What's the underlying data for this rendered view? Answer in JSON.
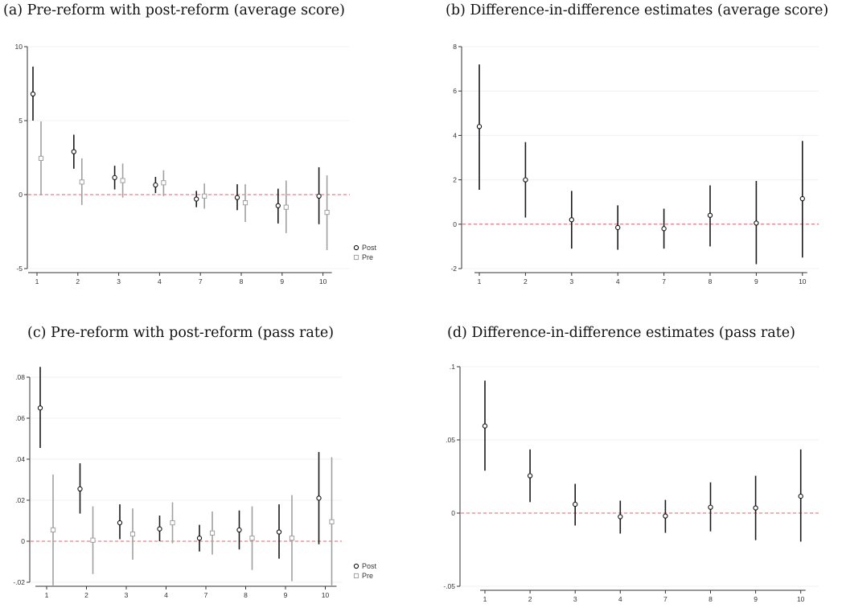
{
  "style": {
    "post_color": "#1a1a1a",
    "pre_color": "#a0a0a0",
    "zero_line_color": "#e06070",
    "grid_color": "#eef0f6"
  },
  "chart_data": [
    {
      "type": "scatter",
      "title": "(a) Pre-reform with post-reform (average score)",
      "categories": [
        "1",
        "2",
        "3",
        "4",
        "7",
        "8",
        "9",
        "10"
      ],
      "ylim": [
        -5,
        10
      ],
      "yticks": [
        "-5",
        "0",
        "5",
        "10"
      ],
      "ytick_values": [
        -5,
        0,
        5,
        10
      ],
      "reference_line": 0,
      "legend": {
        "placement": "bottom-right",
        "entries": [
          "Post",
          "Pre"
        ]
      },
      "series": [
        {
          "name": "Post",
          "marker": "circle",
          "values": [
            6.8,
            2.9,
            1.15,
            0.65,
            -0.3,
            -0.2,
            -0.75,
            -0.1
          ],
          "ci_low": [
            5.0,
            1.75,
            0.35,
            0.1,
            -0.85,
            -1.05,
            -1.95,
            -2.0
          ],
          "ci_high": [
            8.65,
            4.05,
            1.95,
            1.2,
            0.25,
            0.7,
            0.4,
            1.85
          ]
        },
        {
          "name": "Pre",
          "marker": "square",
          "values": [
            2.45,
            0.85,
            0.95,
            0.8,
            -0.1,
            -0.55,
            -0.85,
            -1.2
          ],
          "ci_low": [
            -0.05,
            -0.7,
            -0.2,
            -0.1,
            -0.95,
            -1.85,
            -2.6,
            -3.75
          ],
          "ci_high": [
            4.95,
            2.45,
            2.1,
            1.65,
            0.75,
            0.7,
            0.95,
            1.3
          ]
        }
      ]
    },
    {
      "type": "scatter",
      "title": "(b) Difference-in-difference estimates (average score)",
      "categories": [
        "1",
        "2",
        "3",
        "4",
        "7",
        "8",
        "9",
        "10"
      ],
      "ylim": [
        -2,
        8
      ],
      "yticks": [
        "-2",
        "0",
        "2",
        "4",
        "6",
        "8"
      ],
      "ytick_values": [
        -2,
        0,
        2,
        4,
        6,
        8
      ],
      "reference_line": 0,
      "series": [
        {
          "marker": "circle",
          "values": [
            4.4,
            2.0,
            0.2,
            -0.15,
            -0.2,
            0.4,
            0.05,
            1.15
          ],
          "ci_low": [
            1.55,
            0.3,
            -1.1,
            -1.15,
            -1.1,
            -1.0,
            -1.8,
            -1.5
          ],
          "ci_high": [
            7.2,
            3.7,
            1.5,
            0.85,
            0.7,
            1.75,
            1.95,
            3.75
          ]
        }
      ]
    },
    {
      "type": "scatter",
      "title": "(c) Pre-reform with post-reform (pass rate)",
      "categories": [
        "1",
        "2",
        "3",
        "4",
        "7",
        "8",
        "9",
        "10"
      ],
      "ylim": [
        -0.02,
        0.08
      ],
      "yticks": [
        "-.02",
        "0",
        ".02",
        ".04",
        ".06",
        ".08"
      ],
      "ytick_values": [
        -0.02,
        0,
        0.02,
        0.04,
        0.06,
        0.08
      ],
      "reference_line": 0,
      "legend": {
        "placement": "bottom-right",
        "entries": [
          "Post",
          "Pre"
        ]
      },
      "series": [
        {
          "name": "Post",
          "marker": "circle",
          "values": [
            0.065,
            0.0255,
            0.009,
            0.006,
            0.0015,
            0.0055,
            0.0045,
            0.021
          ],
          "ci_low": [
            0.0455,
            0.0135,
            0.001,
            0.0,
            -0.005,
            -0.004,
            -0.0085,
            -0.0015
          ],
          "ci_high": [
            0.085,
            0.038,
            0.018,
            0.0125,
            0.008,
            0.015,
            0.018,
            0.0435
          ]
        },
        {
          "name": "Pre",
          "marker": "square",
          "values": [
            0.0055,
            0.0005,
            0.0035,
            0.009,
            0.004,
            0.0015,
            0.0015,
            0.0095
          ],
          "ci_low": [
            -0.0215,
            -0.016,
            -0.009,
            -0.001,
            -0.0065,
            -0.014,
            -0.0195,
            -0.0215
          ],
          "ci_high": [
            0.0325,
            0.017,
            0.016,
            0.019,
            0.0145,
            0.017,
            0.0225,
            0.041
          ]
        }
      ]
    },
    {
      "type": "scatter",
      "title": "(d) Difference-in-difference estimates (pass rate)",
      "categories": [
        "1",
        "2",
        "3",
        "4",
        "7",
        "8",
        "9",
        "10"
      ],
      "ylim": [
        -0.05,
        0.1
      ],
      "yticks": [
        "-.05",
        "0",
        ".05",
        ".1"
      ],
      "ytick_values": [
        -0.05,
        0,
        0.05,
        0.1
      ],
      "reference_line": 0,
      "series": [
        {
          "marker": "circle",
          "values": [
            0.0595,
            0.0255,
            0.006,
            -0.0025,
            -0.002,
            0.004,
            0.0035,
            0.0115
          ],
          "ci_low": [
            0.029,
            0.0075,
            -0.0085,
            -0.014,
            -0.0135,
            -0.0125,
            -0.0185,
            -0.0195
          ],
          "ci_high": [
            0.0905,
            0.0435,
            0.02,
            0.0085,
            0.009,
            0.021,
            0.0255,
            0.0435
          ]
        }
      ]
    }
  ]
}
